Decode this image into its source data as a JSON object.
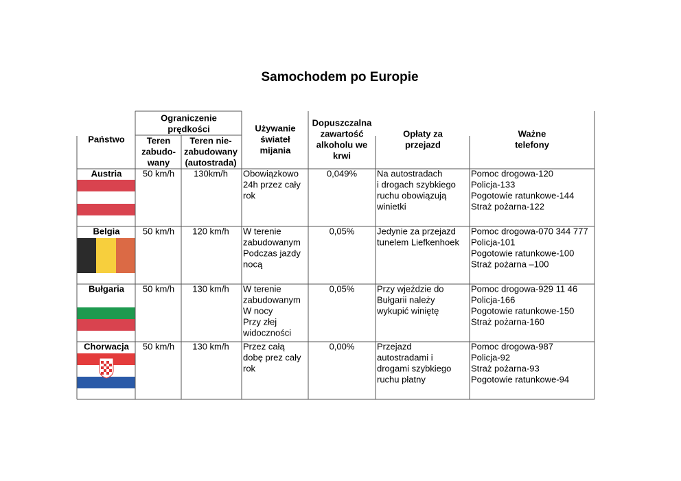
{
  "title": "Samochodem po Europie",
  "table": {
    "header": {
      "country": [
        "Państwo"
      ],
      "speed": [
        "Ograniczenie",
        "prędkości"
      ],
      "urban": [
        "Teren",
        "zabudo-",
        "wany"
      ],
      "rural": [
        "Teren nie-",
        "zabudowany",
        "(autostrada)"
      ],
      "lights": [
        "Używanie",
        "świateł",
        "mijania"
      ],
      "alcohol": [
        "Dopuszczalna",
        "zawartość",
        "alkoholu we",
        "krwi"
      ],
      "tolls": [
        "Opłaty za",
        "przejazd"
      ],
      "phones": [
        "Ważne",
        "telefony"
      ]
    },
    "rows": [
      {
        "country": "Austria",
        "urban": "50 km/h",
        "rural": "130km/h",
        "lights": [
          "Obowiązkowo",
          "24h przez cały",
          "rok"
        ],
        "alcohol": "0,049%",
        "tolls": [
          "Na autostradach",
          "i drogach szybkiego",
          "ruchu obowiązują",
          "winietki"
        ],
        "phones": [
          "Pomoc drogowa-120",
          "Policja-133",
          "Pogotowie ratunkowe-144",
          "Straż pożarna-122"
        ]
      },
      {
        "country": "Belgia",
        "urban": "50 km/h",
        "rural": "120 km/h",
        "lights": [
          "W terenie",
          "zabudowanym",
          "Podczas jazdy",
          "nocą"
        ],
        "alcohol": "0,05%",
        "tolls": [
          "Jedynie za przejazd",
          "tunelem Liefkenhoek"
        ],
        "phones": [
          "Pomoc drogowa-070 344 777",
          "Policja-101",
          "Pogotowie ratunkowe-100",
          "Straż pożarna –100"
        ]
      },
      {
        "country": "Bułgaria",
        "urban": "50 km/h",
        "rural": "130 km/h",
        "lights": [
          "W terenie",
          "zabudowanym",
          "W nocy",
          "Przy złej",
          "widoczności"
        ],
        "alcohol": "0,05%",
        "tolls": [
          "Przy wjeździe do",
          "Bułgarii należy",
          "wykupić winiętę"
        ],
        "phones": [
          "Pomoc drogowa-929 11 46",
          "Policja-166",
          "Pogotowie ratunkowe-150",
          "Straż pożarna-160"
        ]
      },
      {
        "country": "Chorwacja",
        "urban": "50 km/h",
        "rural": "130 km/h",
        "lights": [
          "Przez całą",
          "dobę prez cały",
          "rok"
        ],
        "alcohol": "0,00%",
        "tolls": [
          "Przejazd",
          "autostradami i",
          "drogami szybkiego",
          "ruchu płatny"
        ],
        "phones": [
          "Pomoc drogowa-987",
          "Policja-92",
          "Straż pożarna-93",
          "Pogotowie ratunkowe-94"
        ]
      }
    ]
  }
}
